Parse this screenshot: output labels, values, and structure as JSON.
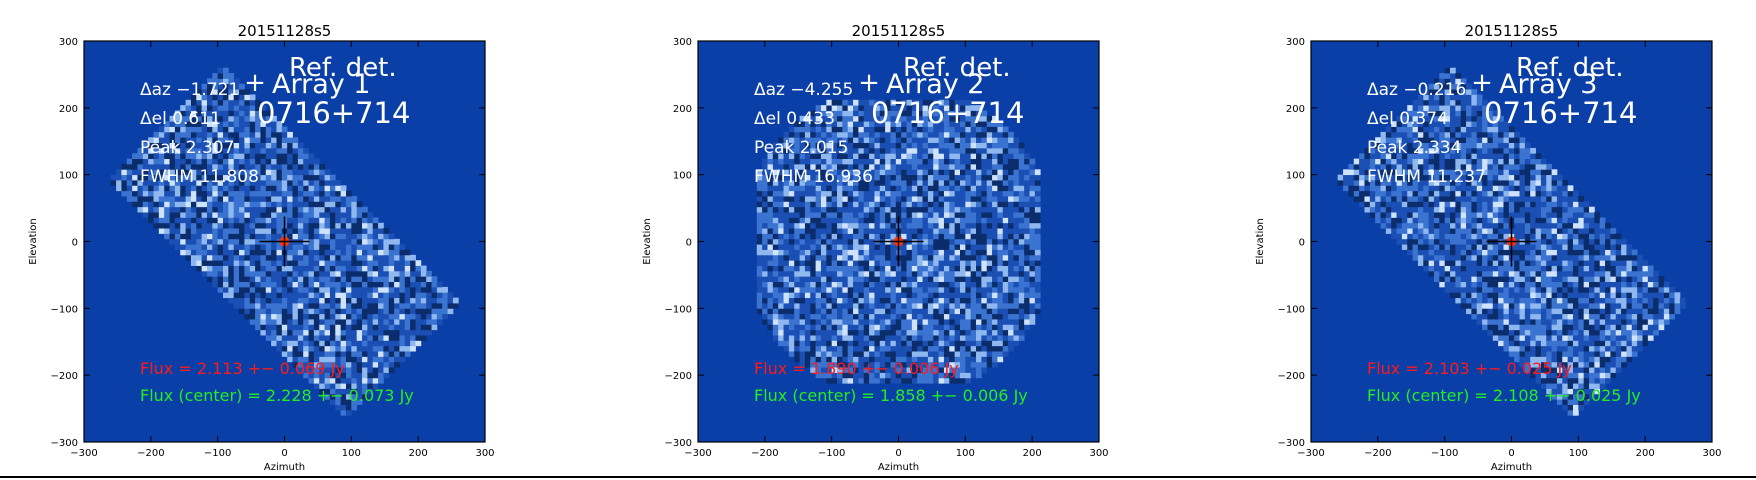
{
  "colors": {
    "background_field": "#0a3fa8",
    "map_pixel_dark": "#0b2d6b",
    "map_pixel_light": "#cfe3ff",
    "flux_text": "#ff1a1a",
    "flux_center_text": "#22ee22",
    "annotation_text": "#ffffff",
    "axis": "#000000"
  },
  "chart_data": [
    {
      "type": "heatmap",
      "title": "20151128s5",
      "xlabel": "Azimuth",
      "ylabel": "Elevation",
      "xlim": [
        -300,
        300
      ],
      "ylim": [
        -300,
        300
      ],
      "xticks": [
        "−300",
        "−200",
        "−100",
        "0",
        "100",
        "200",
        "300"
      ],
      "yticks": [
        "300",
        "200",
        "100",
        "0",
        "−100",
        "−200",
        "−300"
      ],
      "coverage_shape": "tilted-band",
      "source_offset": [
        0,
        0
      ],
      "stats": [
        {
          "label": "Δaz",
          "value": "−1.721"
        },
        {
          "label": "Δel",
          "value": "0.611"
        },
        {
          "label": "Peak",
          "value": "2.307"
        },
        {
          "label": "FWHM",
          "value": "11.808"
        }
      ],
      "ref_label": "Ref. det.",
      "array_label": "Array 1",
      "source_name": "0716+714",
      "flux_text": "Flux = 2.113 +− 0.069 Jy",
      "flux_center_text": "Flux (center) = 2.228 +− 0.073 Jy"
    },
    {
      "type": "heatmap",
      "title": "20151128s5",
      "xlabel": "Azimuth",
      "ylabel": "Elevation",
      "xlim": [
        -300,
        300
      ],
      "ylim": [
        -300,
        300
      ],
      "xticks": [
        "−300",
        "−200",
        "−100",
        "0",
        "100",
        "200",
        "300"
      ],
      "yticks": [
        "300",
        "200",
        "100",
        "0",
        "−100",
        "−200",
        "−300"
      ],
      "coverage_shape": "round",
      "source_offset": [
        0,
        0
      ],
      "stats": [
        {
          "label": "Δaz",
          "value": "−4.255"
        },
        {
          "label": "Δel",
          "value": "0.433"
        },
        {
          "label": "Peak",
          "value": "2.015"
        },
        {
          "label": "FWHM",
          "value": "16.936"
        }
      ],
      "ref_label": "Ref. det.",
      "array_label": "Array 2",
      "source_name": "0716+714",
      "flux_text": "Flux = 1.890 +− 0.006 Jy",
      "flux_center_text": "Flux (center) = 1.858 +− 0.006 Jy"
    },
    {
      "type": "heatmap",
      "title": "20151128s5",
      "xlabel": "Azimuth",
      "ylabel": "Elevation",
      "xlim": [
        -300,
        300
      ],
      "ylim": [
        -300,
        300
      ],
      "xticks": [
        "−300",
        "−200",
        "−100",
        "0",
        "100",
        "200",
        "300"
      ],
      "yticks": [
        "300",
        "200",
        "100",
        "0",
        "−100",
        "−200",
        "−300"
      ],
      "coverage_shape": "tilted-band",
      "source_offset": [
        0,
        0
      ],
      "stats": [
        {
          "label": "Δaz",
          "value": "−0.216"
        },
        {
          "label": "Δel",
          "value": "0.374"
        },
        {
          "label": "Peak",
          "value": "2.334"
        },
        {
          "label": "FWHM",
          "value": "11.237"
        }
      ],
      "ref_label": "Ref. det.",
      "array_label": "Array 3",
      "source_name": "0716+714",
      "flux_text": "Flux = 2.103 +− 0.025 Jy",
      "flux_center_text": "Flux (center) = 2.108 +− 0.025 Jy"
    }
  ]
}
